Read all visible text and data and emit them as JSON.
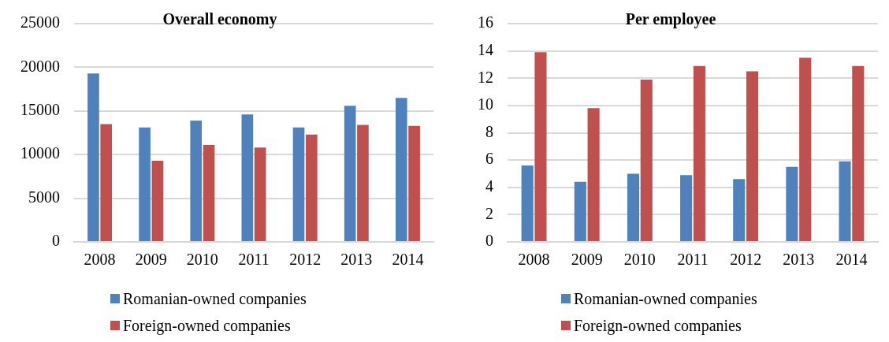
{
  "chart_data": [
    {
      "type": "bar",
      "title": "Overall economy",
      "categories": [
        "2008",
        "2009",
        "2010",
        "2011",
        "2012",
        "2013",
        "2014"
      ],
      "series": [
        {
          "name": "Romanian-owned companies",
          "color": "#4f81bd",
          "values": [
            19300,
            13100,
            13900,
            14600,
            13100,
            15600,
            16500
          ]
        },
        {
          "name": "Foreign-owned companies",
          "color": "#c0504d",
          "values": [
            13500,
            9300,
            11100,
            10800,
            12300,
            13400,
            13300
          ]
        }
      ],
      "ylim": [
        0,
        25000
      ],
      "yticks": [
        0,
        5000,
        10000,
        15000,
        20000,
        25000
      ],
      "grid": "y",
      "legend": "bottom"
    },
    {
      "type": "bar",
      "title": "Per employee",
      "categories": [
        "2008",
        "2009",
        "2010",
        "2011",
        "2012",
        "2013",
        "2014"
      ],
      "series": [
        {
          "name": "Romanian-owned companies",
          "color": "#4f81bd",
          "values": [
            5.6,
            4.4,
            5.0,
            4.9,
            4.6,
            5.5,
            5.9
          ]
        },
        {
          "name": "Foreign-owned companies",
          "color": "#c0504d",
          "values": [
            13.9,
            9.8,
            11.9,
            12.9,
            12.5,
            13.5,
            12.9
          ]
        }
      ],
      "ylim": [
        0,
        16
      ],
      "yticks": [
        0,
        2,
        4,
        6,
        8,
        10,
        12,
        14,
        16
      ],
      "grid": "y",
      "legend": "bottom"
    }
  ]
}
